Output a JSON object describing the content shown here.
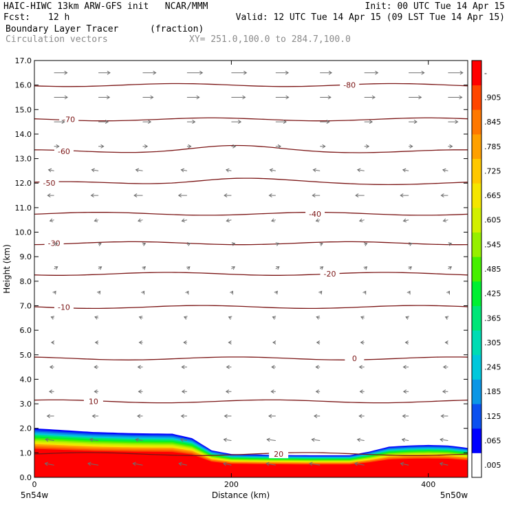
{
  "header": {
    "line1_left": "HAIC-HIWC 13km ARW-GFS init   NCAR/MMM",
    "line1_right": "Init: 00 UTC Tue 14 Apr 15",
    "fcst_label": "Fcst:",
    "fcst_value": "12 h",
    "line2_right": "Valid: 12 UTC Tue 14 Apr 15 (09 LST Tue 14 Apr 15)",
    "field_name": "Boundary Layer Tracer",
    "field_units": "(fraction)",
    "vector_label": "Circulation vectors",
    "xy_label": "XY= 251.0,100.0 to 284.7,100.0"
  },
  "chart_data": {
    "type": "heatmap",
    "xlabel": "Distance (km)",
    "ylabel": "Height (km)",
    "xlim": [
      0,
      440
    ],
    "ylim": [
      0,
      17
    ],
    "x_ticks": [
      0,
      200,
      400
    ],
    "x_tick_labels": [
      "0",
      "200",
      "400"
    ],
    "y_ticks": [
      0,
      1,
      2,
      3,
      4,
      5,
      6,
      7,
      8,
      9,
      10,
      11,
      12,
      13,
      14,
      15,
      16,
      17
    ],
    "y_tick_labels": [
      "0.0",
      "1.0",
      "2.0",
      "3.0",
      "4.0",
      "5.0",
      "6.0",
      "7.0",
      "8.0",
      "9.0",
      "10.0",
      "11.0",
      "12.0",
      "13.0",
      "14.0",
      "15.0",
      "16.0",
      "17.0"
    ],
    "endpoint_labels": [
      "5n54w",
      "5n50w"
    ],
    "colorbar": {
      "labels": [
        ".005",
        ".065",
        ".125",
        ".185",
        ".245",
        ".305",
        ".365",
        ".425",
        ".485",
        ".545",
        ".605",
        ".665",
        ".725",
        ".785",
        ".845",
        ".905",
        "-"
      ],
      "colors": [
        "#ffffff",
        "#0000ff",
        "#0a50f0",
        "#0a96e6",
        "#00c8dc",
        "#00dcb4",
        "#00e678",
        "#00f032",
        "#46f000",
        "#96f000",
        "#d2f000",
        "#f5e600",
        "#ffc800",
        "#ffa000",
        "#ff7800",
        "#ff4600",
        "#ff0000"
      ]
    },
    "isotherms": {
      "levels": [
        20,
        10,
        0,
        -10,
        -20,
        -30,
        -40,
        -50,
        -60,
        -70,
        -80
      ],
      "heights_km": [
        0.95,
        3.1,
        4.85,
        6.95,
        8.3,
        9.55,
        10.75,
        12.0,
        13.3,
        14.6,
        16.0
      ],
      "label_x_km": [
        248,
        60,
        325,
        30,
        300,
        20,
        285,
        15,
        30,
        35,
        320
      ]
    },
    "tracer_top_profile_km": {
      "x": [
        0,
        20,
        60,
        100,
        140,
        160,
        180,
        200,
        240,
        280,
        320,
        340,
        360,
        380,
        400,
        420,
        440
      ],
      "top": [
        2.0,
        1.95,
        1.85,
        1.8,
        1.78,
        1.6,
        1.1,
        0.95,
        0.92,
        0.9,
        0.9,
        1.05,
        1.25,
        1.3,
        1.32,
        1.3,
        1.2
      ]
    },
    "vectors": {
      "x_km": [
        20,
        65,
        110,
        155,
        200,
        245,
        290,
        335,
        380,
        420
      ],
      "z_km": [
        0.5,
        1.5,
        2.5,
        3.5,
        4.5,
        5.5,
        6.5,
        7.5,
        8.5,
        9.5,
        10.5,
        11.5,
        12.5,
        13.5,
        14.5,
        15.5,
        16.5
      ],
      "u_ms": [
        -6,
        -5,
        -4,
        -3,
        -3,
        -2,
        -2,
        1,
        2,
        2,
        -3,
        -5,
        -4,
        3,
        6,
        8,
        9
      ],
      "w_rel": [
        0.3,
        0.2,
        0,
        0,
        0,
        0,
        0.2,
        0.4,
        0.4,
        0.2,
        -0.2,
        0,
        0.2,
        0,
        0,
        0,
        0
      ]
    }
  }
}
